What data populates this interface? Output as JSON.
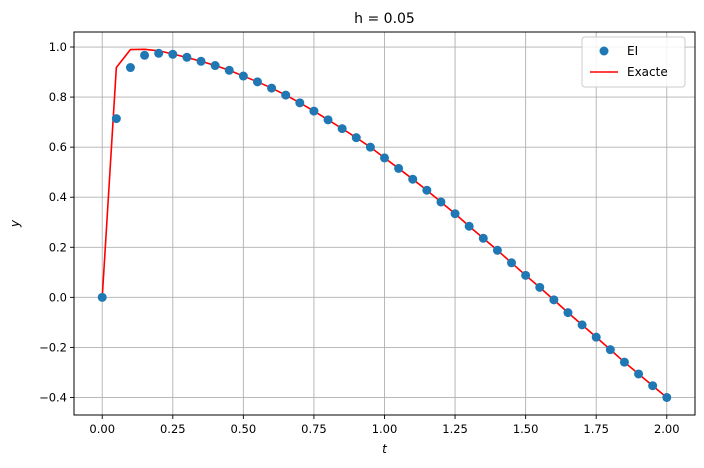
{
  "chart_data": {
    "type": "line",
    "title": "h = 0.05",
    "xlabel": "t",
    "ylabel": "y",
    "xlim": [
      -0.1,
      2.1
    ],
    "ylim": [
      -0.47,
      1.06
    ],
    "x_ticks": [
      0.0,
      0.25,
      0.5,
      0.75,
      1.0,
      1.25,
      1.5,
      1.75,
      2.0
    ],
    "x_tick_labels": [
      "0.00",
      "0.25",
      "0.50",
      "0.75",
      "1.00",
      "1.25",
      "1.50",
      "1.75",
      "2.00"
    ],
    "y_ticks": [
      -0.4,
      -0.2,
      0.0,
      0.2,
      0.4,
      0.6,
      0.8,
      1.0
    ],
    "y_tick_labels": [
      "−0.4",
      "−0.2",
      "0.0",
      "0.2",
      "0.4",
      "0.6",
      "0.8",
      "1.0"
    ],
    "grid": true,
    "legend_position": "top-right",
    "series": [
      {
        "name": "EI",
        "style": "markers",
        "color": "#1f77b4",
        "x": [
          0.0,
          0.05,
          0.1,
          0.15,
          0.2,
          0.25,
          0.3,
          0.35,
          0.4,
          0.45,
          0.5,
          0.55,
          0.6,
          0.65,
          0.7,
          0.75,
          0.8,
          0.85,
          0.9,
          0.95,
          1.0,
          1.05,
          1.1,
          1.15,
          1.2,
          1.25,
          1.3,
          1.35,
          1.4,
          1.45,
          1.5,
          1.55,
          1.6,
          1.65,
          1.7,
          1.75,
          1.8,
          1.85,
          1.9,
          1.95,
          2.0
        ],
        "y": [
          0.0,
          0.714,
          0.918,
          0.967,
          0.975,
          0.971,
          0.959,
          0.943,
          0.926,
          0.907,
          0.884,
          0.861,
          0.836,
          0.808,
          0.777,
          0.744,
          0.709,
          0.674,
          0.638,
          0.6,
          0.557,
          0.515,
          0.472,
          0.428,
          0.381,
          0.334,
          0.284,
          0.236,
          0.188,
          0.138,
          0.088,
          0.04,
          -0.01,
          -0.061,
          -0.11,
          -0.159,
          -0.209,
          -0.259,
          -0.306,
          -0.353,
          -0.4
        ]
      },
      {
        "name": "Exacte",
        "style": "line",
        "color": "#ff0000",
        "x": [
          0.0,
          0.05,
          0.1,
          0.15,
          0.2,
          0.25,
          0.3,
          0.35,
          0.4,
          0.45,
          0.5,
          0.55,
          0.6,
          0.65,
          0.7,
          0.75,
          0.8,
          0.85,
          0.9,
          0.95,
          1.0,
          1.05,
          1.1,
          1.15,
          1.2,
          1.25,
          1.3,
          1.35,
          1.4,
          1.45,
          1.5,
          1.55,
          1.6,
          1.65,
          1.7,
          1.75,
          1.8,
          1.85,
          1.9,
          1.95,
          2.0
        ],
        "y": [
          0.0,
          0.918,
          0.99,
          0.991,
          0.985,
          0.972,
          0.958,
          0.943,
          0.926,
          0.907,
          0.884,
          0.861,
          0.836,
          0.808,
          0.777,
          0.744,
          0.709,
          0.674,
          0.638,
          0.6,
          0.557,
          0.515,
          0.472,
          0.428,
          0.381,
          0.334,
          0.284,
          0.236,
          0.188,
          0.138,
          0.088,
          0.04,
          -0.01,
          -0.061,
          -0.11,
          -0.159,
          -0.209,
          -0.259,
          -0.306,
          -0.353,
          -0.4
        ]
      }
    ]
  }
}
